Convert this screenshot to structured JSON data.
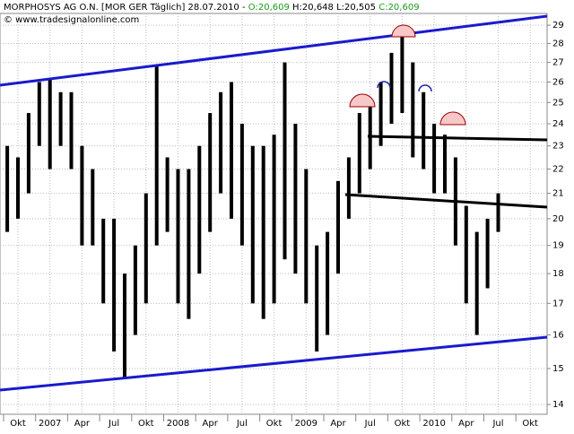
{
  "header": {
    "name": "MORPHOSYS AG O.N. [MOR GER  Täglich] 28.07.2010 -",
    "open": "O:20,609",
    "high_low": "H:20,648 L:20,505",
    "close": "C:20,609",
    "source": "© www.tradesignalonline.com"
  },
  "chart_data": {
    "type": "range-bar",
    "color": "#000000",
    "log_scale": true,
    "grid": true,
    "categories": [
      null,
      "Okt",
      null,
      null,
      "2007",
      null,
      null,
      "Apr",
      null,
      null,
      "Jul",
      null,
      null,
      "Okt",
      null,
      null,
      "2008",
      null,
      null,
      "Apr",
      null,
      null,
      "Jul",
      null,
      null,
      "Okt",
      null,
      null,
      "2009",
      null,
      null,
      "Apr",
      null,
      null,
      "Jul",
      null,
      null,
      "Okt",
      null,
      null,
      "2010",
      null,
      null,
      "Apr",
      null,
      null,
      "Jul",
      null,
      null,
      "Okt"
    ],
    "high": [
      23,
      22.5,
      24.5,
      26,
      26.2,
      25.5,
      25.5,
      23,
      22,
      20,
      20,
      18,
      19,
      21,
      26.8,
      22.5,
      22,
      22,
      23,
      24.5,
      25.5,
      26,
      24,
      23,
      23,
      23.5,
      27,
      24,
      22,
      19,
      19.5,
      21.5,
      22.5,
      24.5,
      25,
      26,
      27.5,
      28.5,
      27,
      25.5,
      24,
      23.5,
      22.5,
      20.5,
      19.5,
      20,
      21,
      null,
      null,
      null
    ],
    "low": [
      19.5,
      20,
      21,
      23,
      22,
      23,
      22,
      19,
      19,
      17,
      15.5,
      14.7,
      16,
      17,
      19,
      19.5,
      17,
      16.5,
      18,
      19.5,
      21,
      20,
      19,
      17,
      16.5,
      17,
      18.5,
      18,
      17,
      15.5,
      16,
      18,
      20,
      21,
      22,
      23,
      24,
      24.5,
      22.5,
      22,
      21,
      21,
      19,
      17,
      16,
      17.5,
      19.5,
      null,
      null,
      null
    ],
    "ylim": [
      13.74,
      29.66
    ],
    "yticks": [
      14,
      15,
      16,
      17,
      18,
      19,
      20,
      21,
      22,
      23,
      24,
      25,
      26,
      27,
      28,
      29
    ]
  }
}
